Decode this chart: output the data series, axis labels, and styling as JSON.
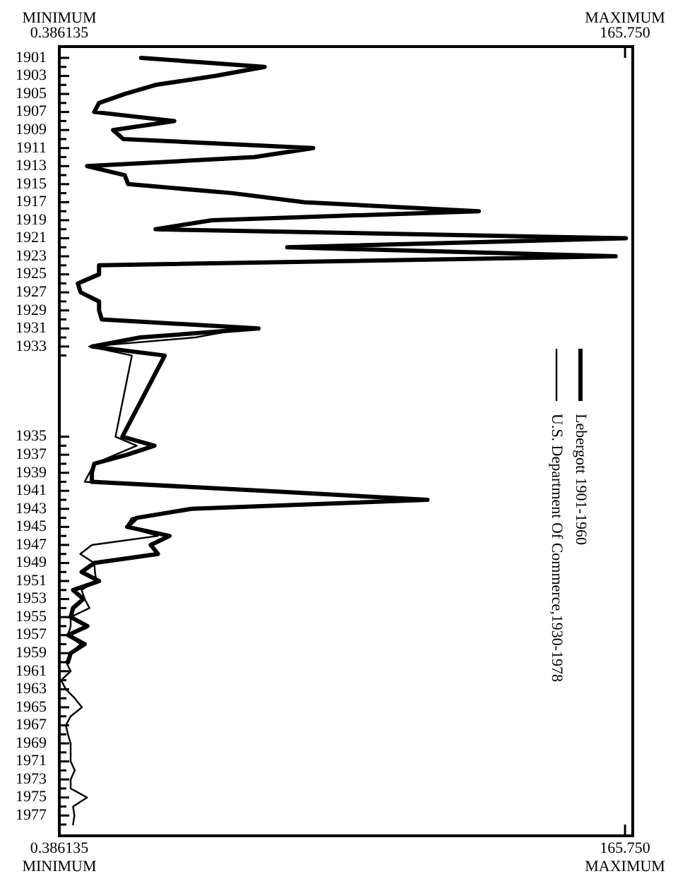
{
  "chart_data": {
    "type": "line",
    "orientation": "horizontal",
    "categories": [
      "1901",
      null,
      "1903",
      null,
      "1905",
      null,
      "1907",
      null,
      "1909",
      null,
      "1911",
      null,
      "1913",
      null,
      "1915",
      null,
      "1917",
      null,
      "1919",
      null,
      "1921",
      null,
      "1923",
      null,
      "1925",
      null,
      "1927",
      null,
      "1929",
      null,
      "1931",
      null,
      "1933",
      null,
      null,
      null,
      null,
      null,
      null,
      null,
      null,
      null,
      "1935",
      null,
      "1937",
      null,
      "1939",
      null,
      "1941",
      null,
      "1943",
      null,
      "1945",
      null,
      "1947",
      null,
      "1949",
      null,
      "1951",
      null,
      "1953",
      null,
      "1955",
      null,
      "1957",
      null,
      "1959",
      null,
      "1961",
      null,
      "1963",
      null,
      "1965",
      null,
      "1967",
      null,
      "1969",
      null,
      "1971",
      null,
      "1973",
      null,
      "1975",
      null,
      "1977",
      null
    ],
    "series": [
      {
        "name": "Lebergott 1901-1960",
        "color": "#000000",
        "values": [
          24.3,
          60.4,
          46,
          28.5,
          19.5,
          12,
          10.6,
          34,
          16.1,
          19.1,
          74.6,
          57.4,
          8.5,
          19.5,
          20.5,
          51,
          72,
          123,
          45,
          28.5,
          166,
          67,
          163,
          12,
          12,
          5.8,
          6.6,
          12,
          12,
          12.8,
          58.6,
          24,
          9.9,
          31.2,
          null,
          null,
          null,
          null,
          null,
          null,
          null,
          null,
          18.8,
          28.2,
          20.2,
          10.6,
          9.9,
          9.9,
          60,
          108,
          39,
          23,
          20.2,
          32.6,
          27.1,
          29.2,
          10.6,
          6.9,
          12,
          4.4,
          7.4,
          4.4,
          3.7,
          8.6,
          2.9,
          7.8,
          3.7,
          2.9,
          null,
          null,
          null,
          null,
          null,
          null,
          null,
          null,
          null,
          null,
          null,
          null,
          null,
          null,
          null,
          null,
          null,
          null
        ]
      },
      {
        "name": "U.S. Department Of Commerce,1930-1978",
        "color": "#000000",
        "values": [
          null,
          null,
          null,
          null,
          null,
          null,
          null,
          null,
          null,
          null,
          null,
          null,
          null,
          null,
          null,
          null,
          null,
          null,
          null,
          null,
          null,
          null,
          null,
          null,
          null,
          null,
          null,
          null,
          null,
          12.8,
          54.5,
          40,
          9.1,
          21.6,
          null,
          null,
          null,
          null,
          null,
          null,
          null,
          null,
          16.8,
          23,
          16.8,
          10.6,
          9.2,
          7.8,
          60,
          108,
          41,
          21.6,
          19.9,
          29.2,
          9.9,
          6.5,
          10.6,
          10.8,
          11.2,
          6.9,
          7.8,
          9.2,
          3.7,
          3.7,
          2.9,
          6.6,
          3.7,
          2.4,
          3.7,
          0.9,
          2.3,
          4.9,
          7,
          3.7,
          2.3,
          2.9,
          3.7,
          3.7,
          3.7,
          4.9,
          3.7,
          3.7,
          8.5,
          4.4,
          4.8,
          4.4
        ]
      }
    ],
    "xlim": [
      0.386135,
      168
    ],
    "xticks": [
      {
        "value": 0.386135,
        "label": "0.386135\nMINIMUM"
      },
      {
        "value": 165.75,
        "label": "165.750\nMAXIMUM"
      }
    ],
    "x2lim": [
      0.386135,
      168
    ],
    "x2ticks": [
      0.386135,
      {
        "value": 165.75,
        "label": "165.750"
      }
    ],
    "annotations": [
      "MINIMUM",
      "MAXIMUM"
    ],
    "legend": "right"
  }
}
